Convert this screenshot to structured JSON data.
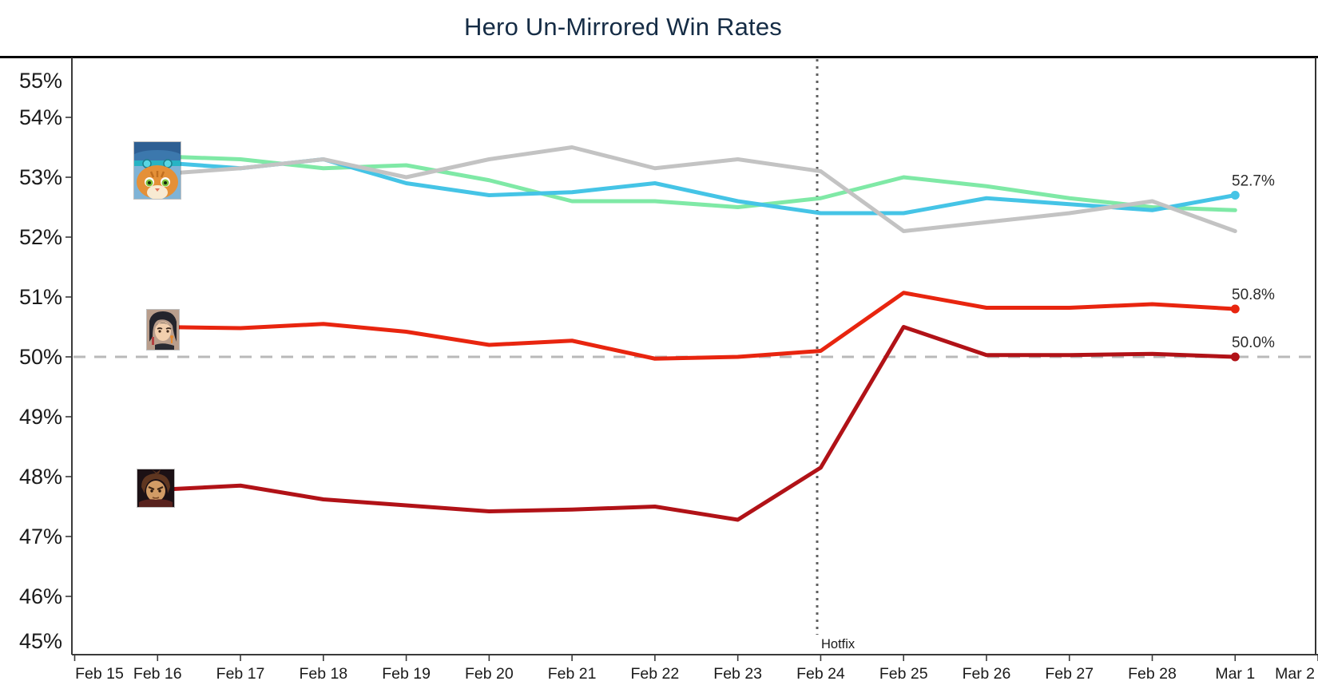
{
  "title": "Hero Un-Mirrored Win Rates",
  "chart_data": {
    "type": "line",
    "title": "Hero Un-Mirrored Win Rates",
    "x_axis_labels": [
      "Feb 15",
      "Feb 16",
      "Feb 17",
      "Feb 18",
      "Feb 19",
      "Feb 20",
      "Feb 21",
      "Feb 22",
      "Feb 23",
      "Feb 24",
      "Feb 25",
      "Feb 26",
      "Feb 27",
      "Feb 28",
      "Mar 1",
      "Mar 2"
    ],
    "y_axis_labels": [
      "55%",
      "54%",
      "53%",
      "52%",
      "51%",
      "50%",
      "49%",
      "48%",
      "47%",
      "46%",
      "45%"
    ],
    "y_axis_values": [
      55,
      54,
      53,
      52,
      51,
      50,
      49,
      48,
      47,
      46,
      45
    ],
    "y_min": 45,
    "y_max": 55,
    "unit": "%",
    "grid": "off",
    "legend": "none",
    "dates": [
      "Feb 16",
      "Feb 17",
      "Feb 18",
      "Feb 19",
      "Feb 20",
      "Feb 21",
      "Feb 22",
      "Feb 23",
      "Feb 24",
      "Feb 25",
      "Feb 26",
      "Feb 27",
      "Feb 28",
      "Mar 1"
    ],
    "reference_lines": [
      {
        "orientation": "horizontal",
        "value": 50,
        "style": "dashed",
        "color": "#b9b9b9",
        "label": ""
      },
      {
        "orientation": "vertical",
        "at": "Feb 24",
        "style": "dotted",
        "color": "#606060",
        "label": "Hotfix"
      }
    ],
    "series": [
      {
        "name": "green-hero",
        "color": "#7fe9a6",
        "values": [
          53.35,
          53.3,
          53.15,
          53.2,
          52.95,
          52.6,
          52.6,
          52.5,
          52.65,
          53.0,
          52.85,
          52.65,
          52.5,
          52.45
        ],
        "end_label": "",
        "end_dot": false
      },
      {
        "name": "cyan-hero",
        "color": "#45c4e6",
        "values": [
          53.25,
          53.15,
          53.3,
          52.9,
          52.7,
          52.75,
          52.9,
          52.6,
          52.4,
          52.4,
          52.65,
          52.55,
          52.45,
          52.7
        ],
        "end_label": "52.7%",
        "end_dot": true
      },
      {
        "name": "gray-hero",
        "color": "#c3c3c3",
        "values": [
          53.05,
          53.15,
          53.3,
          53.0,
          53.3,
          53.5,
          53.15,
          53.3,
          53.1,
          52.1,
          52.25,
          52.4,
          52.6,
          52.1
        ],
        "end_label": "",
        "end_dot": false
      },
      {
        "name": "red-hero",
        "color": "#e8250f",
        "values": [
          50.5,
          50.48,
          50.55,
          50.42,
          50.2,
          50.27,
          49.97,
          50.0,
          50.1,
          51.07,
          50.82,
          50.82,
          50.88,
          50.8
        ],
        "end_label": "50.8%",
        "end_dot": true
      },
      {
        "name": "dark-red-hero",
        "color": "#b11217",
        "values": [
          47.78,
          47.85,
          47.62,
          47.52,
          47.42,
          47.45,
          47.5,
          47.28,
          48.15,
          50.5,
          50.03,
          50.03,
          50.05,
          50.0
        ],
        "end_label": "50.0%",
        "end_dot": true
      }
    ],
    "hero_icons": [
      {
        "name": "cat-pilot-portrait",
        "marks_series": "top cluster (~53%)"
      },
      {
        "name": "dark-haired-hero-portrait",
        "marks_series": "red-hero (~50.5%)"
      },
      {
        "name": "brown-haired-warrior-portrait",
        "marks_series": "dark-red-hero (~47.8%)"
      }
    ],
    "colors": {
      "axis": "#3a3a3a",
      "labels": "#1a1a1a",
      "title": "#152c45",
      "end_label_text": "#2b2b2b"
    }
  }
}
